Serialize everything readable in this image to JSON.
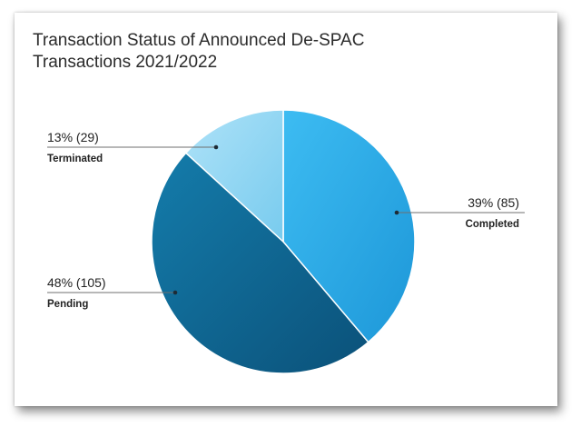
{
  "chart_data": {
    "type": "pie",
    "title": "Transaction Status of Announced De-SPAC Transactions 2021/2022",
    "title_lines": [
      "Transaction Status of Announced De-SPAC",
      "Transactions 2021/2022"
    ],
    "slices": [
      {
        "label": "Completed",
        "value": 85,
        "percent_text": "39% (85)",
        "color": "#2aaeea"
      },
      {
        "label": "Pending",
        "value": 105,
        "percent_text": "48% (105)",
        "color": "#0f6e9c"
      },
      {
        "label": "Terminated",
        "value": 29,
        "percent_text": "13% (29)",
        "color": "#8dd6f5"
      }
    ]
  }
}
